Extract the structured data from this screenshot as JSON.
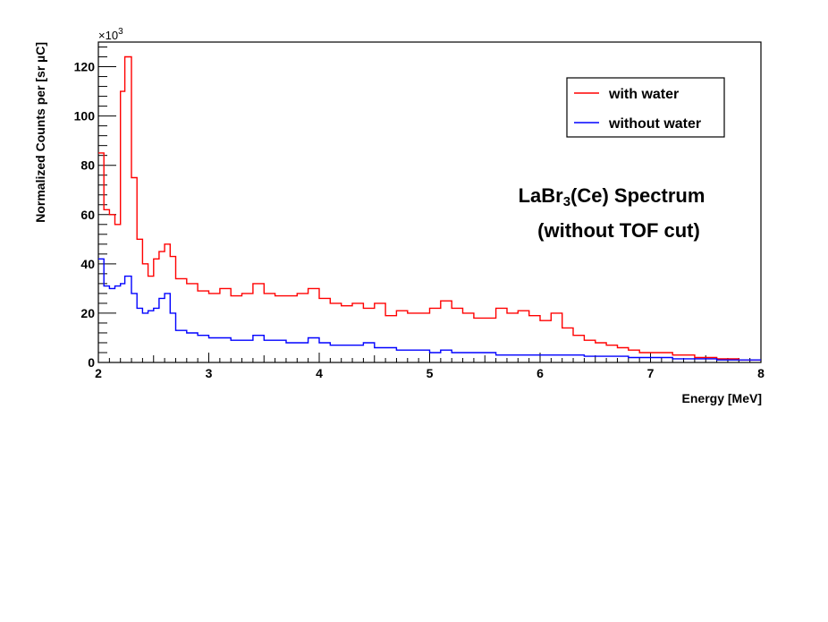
{
  "chart_data": {
    "type": "line",
    "style": "step-histogram",
    "xlabel": "Energy [MeV]",
    "ylabel": "Normalized Counts per [sr µC]",
    "y_multiplier": "×10",
    "y_multiplier_exp": "3",
    "xlim": [
      2,
      8
    ],
    "ylim": [
      0,
      130
    ],
    "x_ticks": [
      2,
      3,
      4,
      5,
      6,
      7,
      8
    ],
    "y_ticks": [
      0,
      20,
      40,
      60,
      80,
      100,
      120
    ],
    "grid": false,
    "legend_position": "top-right",
    "annotation": {
      "line1_pre": "LaBr",
      "line1_sub": "3",
      "line1_post": "(Ce) Spectrum",
      "line2": "(without TOF cut)"
    },
    "series": [
      {
        "name": "with water",
        "color": "#ff0000",
        "x": [
          2.0,
          2.05,
          2.1,
          2.15,
          2.2,
          2.24,
          2.3,
          2.35,
          2.4,
          2.45,
          2.5,
          2.55,
          2.6,
          2.65,
          2.7,
          2.8,
          2.9,
          3.0,
          3.1,
          3.2,
          3.3,
          3.4,
          3.5,
          3.6,
          3.7,
          3.8,
          3.9,
          4.0,
          4.1,
          4.2,
          4.3,
          4.4,
          4.5,
          4.6,
          4.7,
          4.8,
          4.9,
          5.0,
          5.1,
          5.2,
          5.3,
          5.4,
          5.5,
          5.6,
          5.7,
          5.8,
          5.9,
          6.0,
          6.1,
          6.2,
          6.3,
          6.4,
          6.5,
          6.6,
          6.7,
          6.8,
          6.9,
          7.0,
          7.2,
          7.4,
          7.6,
          7.8,
          8.0
        ],
        "values": [
          85,
          62,
          60,
          56,
          110,
          124,
          75,
          50,
          40,
          35,
          42,
          45,
          48,
          43,
          34,
          32,
          29,
          28,
          30,
          27,
          28,
          32,
          28,
          27,
          27,
          28,
          30,
          26,
          24,
          23,
          24,
          22,
          24,
          19,
          21,
          20,
          20,
          22,
          25,
          22,
          20,
          18,
          18,
          22,
          20,
          21,
          19,
          17,
          20,
          14,
          11,
          9,
          8,
          7,
          6,
          5,
          4,
          4,
          3,
          2,
          1.5,
          1,
          1
        ]
      },
      {
        "name": "without water",
        "color": "#0000ff",
        "x": [
          2.0,
          2.05,
          2.1,
          2.15,
          2.2,
          2.24,
          2.3,
          2.35,
          2.4,
          2.45,
          2.5,
          2.55,
          2.6,
          2.65,
          2.7,
          2.8,
          2.9,
          3.0,
          3.1,
          3.2,
          3.3,
          3.4,
          3.5,
          3.6,
          3.7,
          3.8,
          3.9,
          4.0,
          4.1,
          4.2,
          4.3,
          4.4,
          4.5,
          4.6,
          4.7,
          4.8,
          4.9,
          5.0,
          5.1,
          5.2,
          5.3,
          5.4,
          5.5,
          5.6,
          5.7,
          5.8,
          5.9,
          6.0,
          6.2,
          6.4,
          6.6,
          6.8,
          7.0,
          7.2,
          7.4,
          7.6,
          7.8,
          8.0
        ],
        "values": [
          42,
          31,
          30,
          31,
          32,
          35,
          28,
          22,
          20,
          21,
          22,
          26,
          28,
          20,
          13,
          12,
          11,
          10,
          10,
          9,
          9,
          11,
          9,
          9,
          8,
          8,
          10,
          8,
          7,
          7,
          7,
          8,
          6,
          6,
          5,
          5,
          5,
          4,
          5,
          4,
          4,
          4,
          4,
          3,
          3,
          3,
          3,
          3,
          3,
          2.5,
          2.5,
          2,
          2,
          1.5,
          1.5,
          1,
          1,
          1
        ]
      }
    ]
  }
}
